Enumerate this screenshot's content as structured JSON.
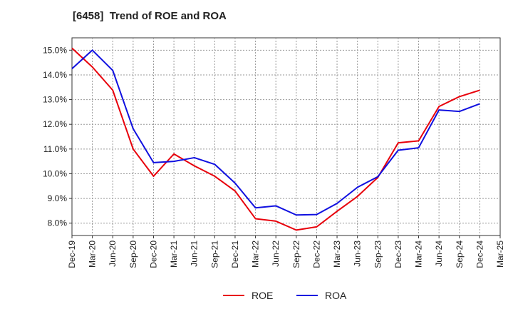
{
  "chart_data": {
    "type": "line",
    "title": "[6458]  Trend of ROE and ROA",
    "xlabel": "",
    "ylabel": "",
    "categories": [
      "Dec-19",
      "Mar-20",
      "Jun-20",
      "Sep-20",
      "Dec-20",
      "Mar-21",
      "Jun-21",
      "Sep-21",
      "Dec-21",
      "Mar-22",
      "Jun-22",
      "Sep-22",
      "Dec-22",
      "Mar-23",
      "Jun-23",
      "Sep-23",
      "Dec-23",
      "Mar-24",
      "Jun-24",
      "Sep-24",
      "Dec-24",
      "Mar-25"
    ],
    "y_ticks": [
      "8.0%",
      "9.0%",
      "10.0%",
      "11.0%",
      "12.0%",
      "13.0%",
      "14.0%",
      "15.0%"
    ],
    "ylim": [
      7.5,
      15.5
    ],
    "grid": true,
    "legend_position": "bottom",
    "series": [
      {
        "name": "ROE",
        "color": "#e8000b",
        "values": [
          15.08,
          14.32,
          13.38,
          11.0,
          9.9,
          10.8,
          10.32,
          9.9,
          9.3,
          8.18,
          8.08,
          7.72,
          7.85,
          8.48,
          9.08,
          9.85,
          11.25,
          11.33,
          12.72,
          13.12,
          13.38,
          null
        ]
      },
      {
        "name": "ROA",
        "color": "#1010e0",
        "values": [
          14.25,
          15.0,
          14.18,
          11.82,
          10.45,
          10.5,
          10.65,
          10.38,
          9.62,
          8.62,
          8.7,
          8.33,
          8.35,
          8.8,
          9.45,
          9.88,
          10.95,
          11.05,
          12.58,
          12.52,
          12.83,
          null
        ]
      }
    ]
  }
}
